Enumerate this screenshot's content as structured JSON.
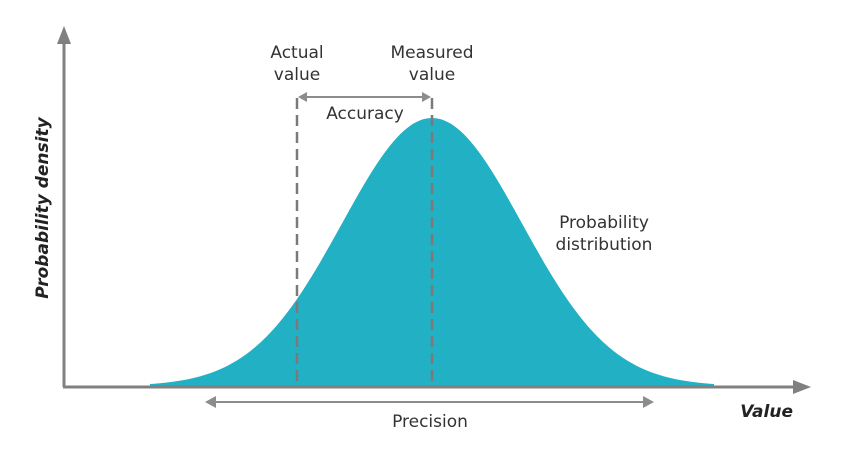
{
  "colors": {
    "curve_fill": "#22b0c4",
    "axis": "#808080",
    "dashed_line": "#7a7a7a",
    "arrow": "#8c8c8c",
    "text": "#333333",
    "axis_label": "#222222"
  },
  "axes": {
    "x_label": "Value",
    "y_label": "Probability density"
  },
  "labels": {
    "actual_line1": "Actual",
    "actual_line2": "value",
    "measured_line1": "Measured",
    "measured_line2": "value",
    "accuracy": "Accuracy",
    "distribution_line1": "Probability",
    "distribution_line2": "distribution",
    "precision": "Precision"
  }
}
